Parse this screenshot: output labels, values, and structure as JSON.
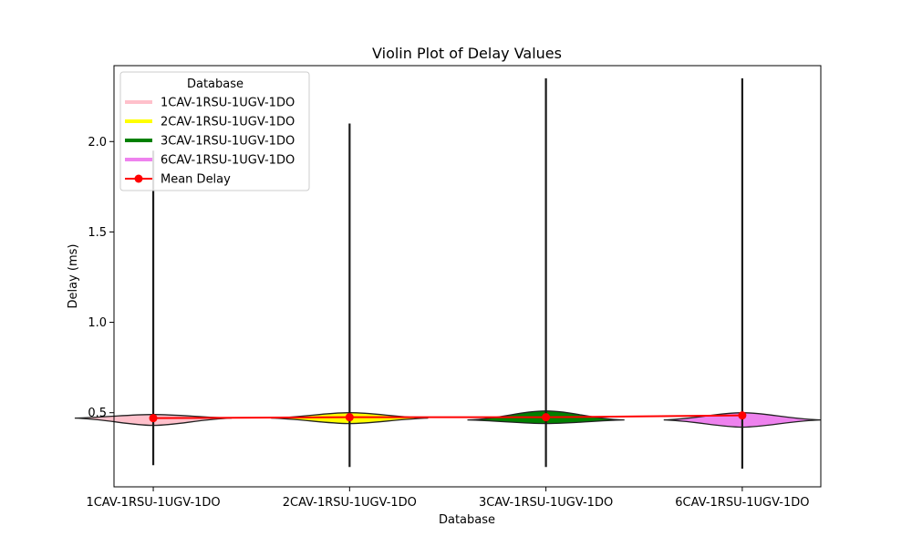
{
  "chart_data": {
    "type": "violin",
    "title": "Violin Plot of Delay Values",
    "xlabel": "Database",
    "ylabel": "Delay (ms)",
    "categories": [
      "1CAV-1RSU-1UGV-1DO",
      "2CAV-1RSU-1UGV-1DO",
      "3CAV-1RSU-1UGV-1DO",
      "6CAV-1RSU-1UGV-1DO"
    ],
    "ylim": [
      0.09,
      2.42
    ],
    "yticks": [
      0.5,
      1.0,
      1.5,
      2.0
    ],
    "ytick_labels": [
      "0.5",
      "1.0",
      "1.5",
      "2.0"
    ],
    "grid": false,
    "legend": {
      "title": "Database",
      "position": "top-left",
      "entries": [
        {
          "label": "1CAV-1RSU-1UGV-1DO",
          "color": "#ffc0cb",
          "kind": "line"
        },
        {
          "label": "2CAV-1RSU-1UGV-1DO",
          "color": "#ffff00",
          "kind": "line"
        },
        {
          "label": "3CAV-1RSU-1UGV-1DO",
          "color": "#008000",
          "kind": "line"
        },
        {
          "label": "6CAV-1RSU-1UGV-1DO",
          "color": "#ee82ee",
          "kind": "line"
        },
        {
          "label": "Mean Delay",
          "color": "#ff0000",
          "kind": "line-marker"
        }
      ]
    },
    "violins": [
      {
        "name": "1CAV-1RSU-1UGV-1DO",
        "color": "#ffc0cb",
        "min": 0.21,
        "max": 1.95,
        "body": {
          "y_bottom": 0.43,
          "y_top": 0.49,
          "y_widest": 0.47
        }
      },
      {
        "name": "2CAV-1RSU-1UGV-1DO",
        "color": "#ffff00",
        "min": 0.2,
        "max": 2.1,
        "body": {
          "y_bottom": 0.44,
          "y_top": 0.5,
          "y_widest": 0.47
        }
      },
      {
        "name": "3CAV-1RSU-1UGV-1DO",
        "color": "#008000",
        "min": 0.2,
        "max": 2.35,
        "body": {
          "y_bottom": 0.44,
          "y_top": 0.51,
          "y_widest": 0.46
        }
      },
      {
        "name": "6CAV-1RSU-1UGV-1DO",
        "color": "#ee82ee",
        "min": 0.19,
        "max": 2.35,
        "body": {
          "y_bottom": 0.42,
          "y_top": 0.5,
          "y_widest": 0.46
        }
      }
    ],
    "series": [
      {
        "name": "Mean Delay",
        "color": "#ff0000",
        "values": [
          0.47,
          0.475,
          0.475,
          0.485
        ]
      }
    ]
  }
}
